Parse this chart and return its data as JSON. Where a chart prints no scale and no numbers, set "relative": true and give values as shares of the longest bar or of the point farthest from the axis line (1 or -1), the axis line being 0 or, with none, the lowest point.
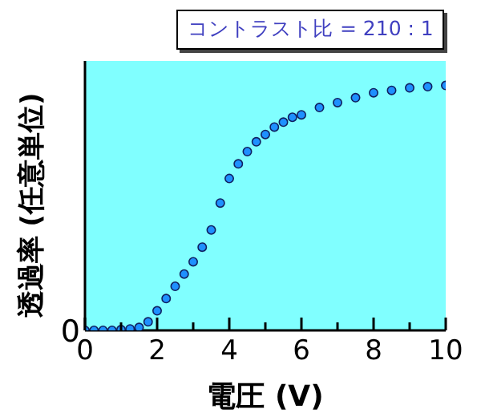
{
  "chart_data": {
    "type": "scatter",
    "xlabel": "電圧 (V)",
    "ylabel": "透過率 (任意単位)",
    "relative": true,
    "marker": "circle",
    "grid": false,
    "legend": false,
    "xlim": [
      0,
      10
    ],
    "xticks": [
      0,
      {
        "value": 1,
        "label": null
      },
      2,
      {
        "value": 3,
        "label": null
      },
      4,
      {
        "value": 5,
        "label": null
      },
      6,
      {
        "value": 7,
        "label": null
      },
      8,
      {
        "value": 9,
        "label": null
      },
      10
    ],
    "annotations": [
      "コントラスト比 = 210 : 1",
      "0"
    ],
    "series": [
      {
        "color": "#1e90ff",
        "x": [
          0,
          0.25,
          0.5,
          0.75,
          1,
          1.25,
          1.5,
          1.75,
          2,
          2.25,
          2.5,
          2.75,
          3,
          3.25,
          3.5,
          3.75,
          4,
          4.25,
          4.5,
          4.75,
          5,
          5.25,
          5.5,
          5.75,
          6,
          6.5,
          7,
          7.5,
          8,
          8.5,
          9,
          9.5,
          10
        ],
        "values": [
          0,
          0,
          0,
          0,
          0.003,
          0.006,
          0.012,
          0.035,
          0.08,
          0.13,
          0.18,
          0.23,
          0.28,
          0.34,
          0.41,
          0.52,
          0.62,
          0.68,
          0.73,
          0.77,
          0.8,
          0.83,
          0.85,
          0.87,
          0.88,
          0.91,
          0.93,
          0.95,
          0.97,
          0.98,
          0.99,
          0.995,
          1
        ]
      }
    ]
  }
}
